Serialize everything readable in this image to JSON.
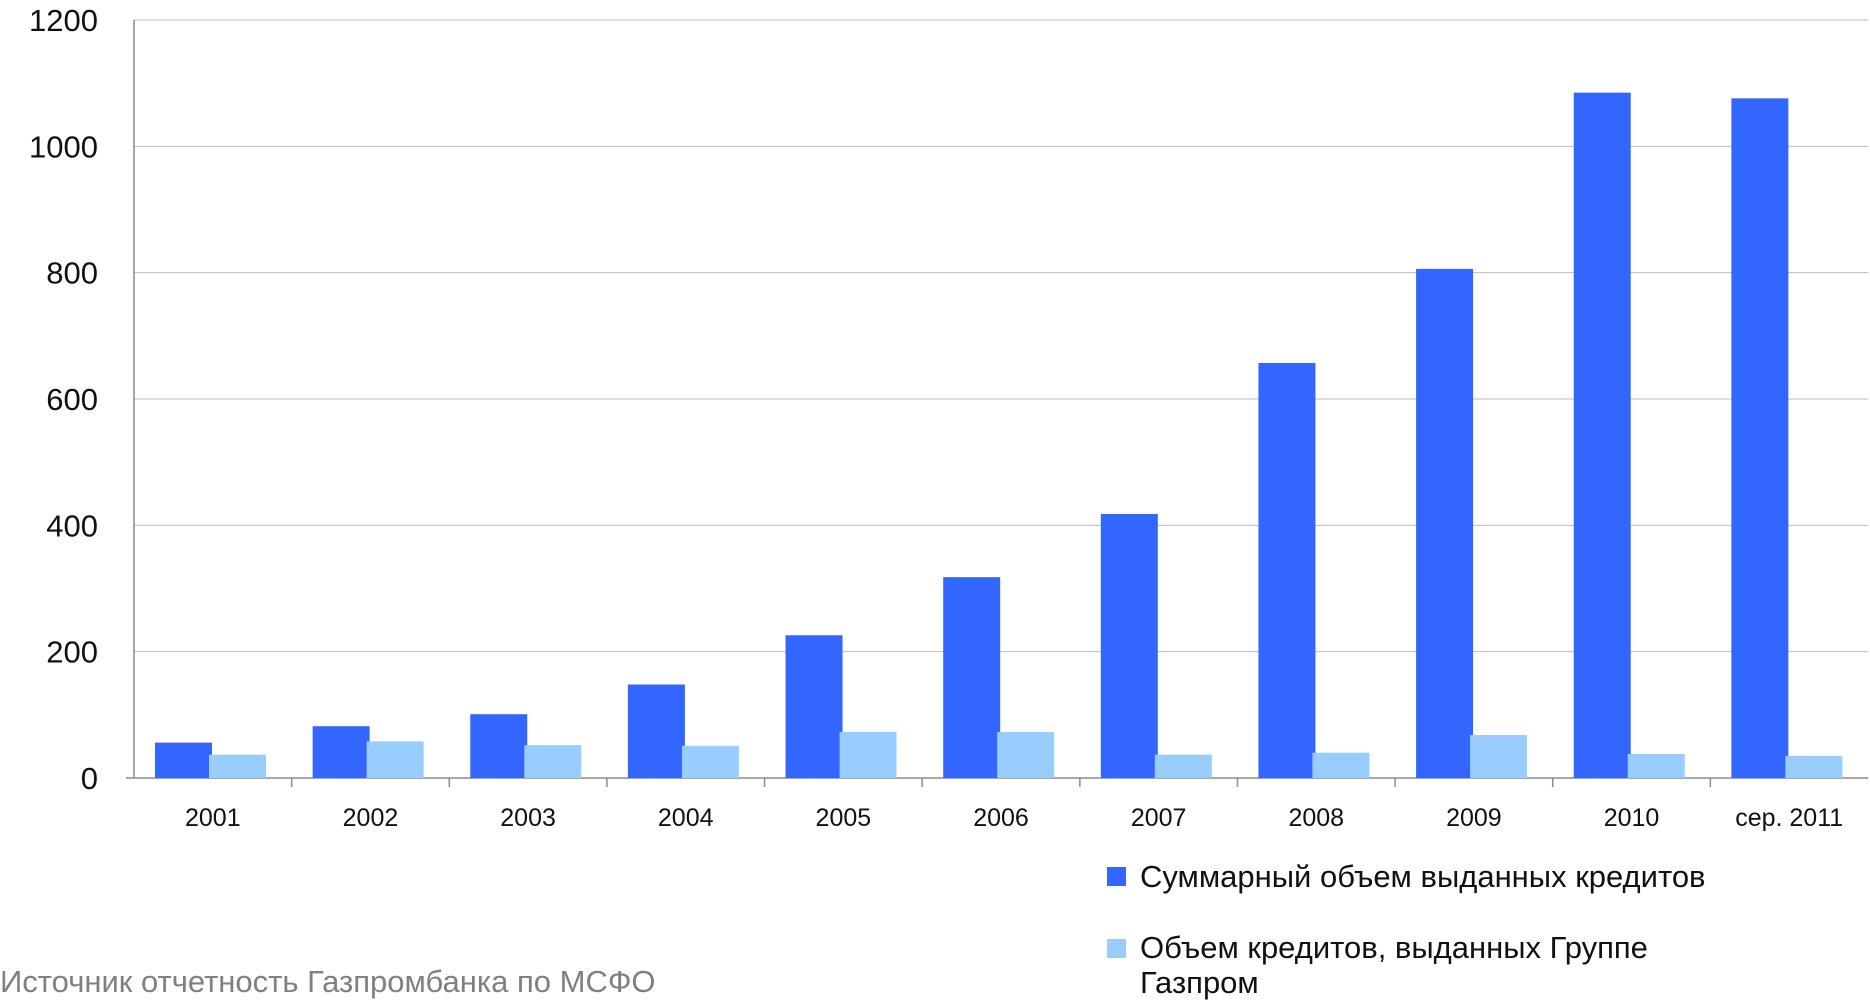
{
  "chart_data": {
    "type": "bar",
    "title": "",
    "xlabel": "",
    "ylabel": "",
    "ylim": [
      0,
      1200
    ],
    "yticks": [
      0,
      200,
      400,
      600,
      800,
      1000,
      1200
    ],
    "grid": true,
    "legend_position": "bottom-right",
    "categories": [
      "2001",
      "2002",
      "2003",
      "2004",
      "2005",
      "2006",
      "2007",
      "2008",
      "2009",
      "2010",
      "сер. 2011"
    ],
    "series": [
      {
        "name": "Суммарный объем выданных кредитов",
        "color": "#3366ff",
        "values": [
          56,
          82,
          101,
          148,
          226,
          318,
          418,
          657,
          806,
          1085,
          1076
        ]
      },
      {
        "name": "Объем кредитов, выданных Группе Газпром",
        "color": "#99ccff",
        "values": [
          37,
          58,
          52,
          51,
          73,
          73,
          37,
          40,
          68,
          38,
          35
        ]
      }
    ]
  },
  "legend": {
    "items": [
      {
        "label": "Суммарный объем выданных кредитов",
        "color": "#3366ff"
      },
      {
        "label_lines": [
          "Объем кредитов, выданных Группе",
          "Газпром"
        ],
        "color": "#99ccff"
      }
    ]
  },
  "source": {
    "text": "Источник  отчетность Газпромбанка по МСФО"
  }
}
